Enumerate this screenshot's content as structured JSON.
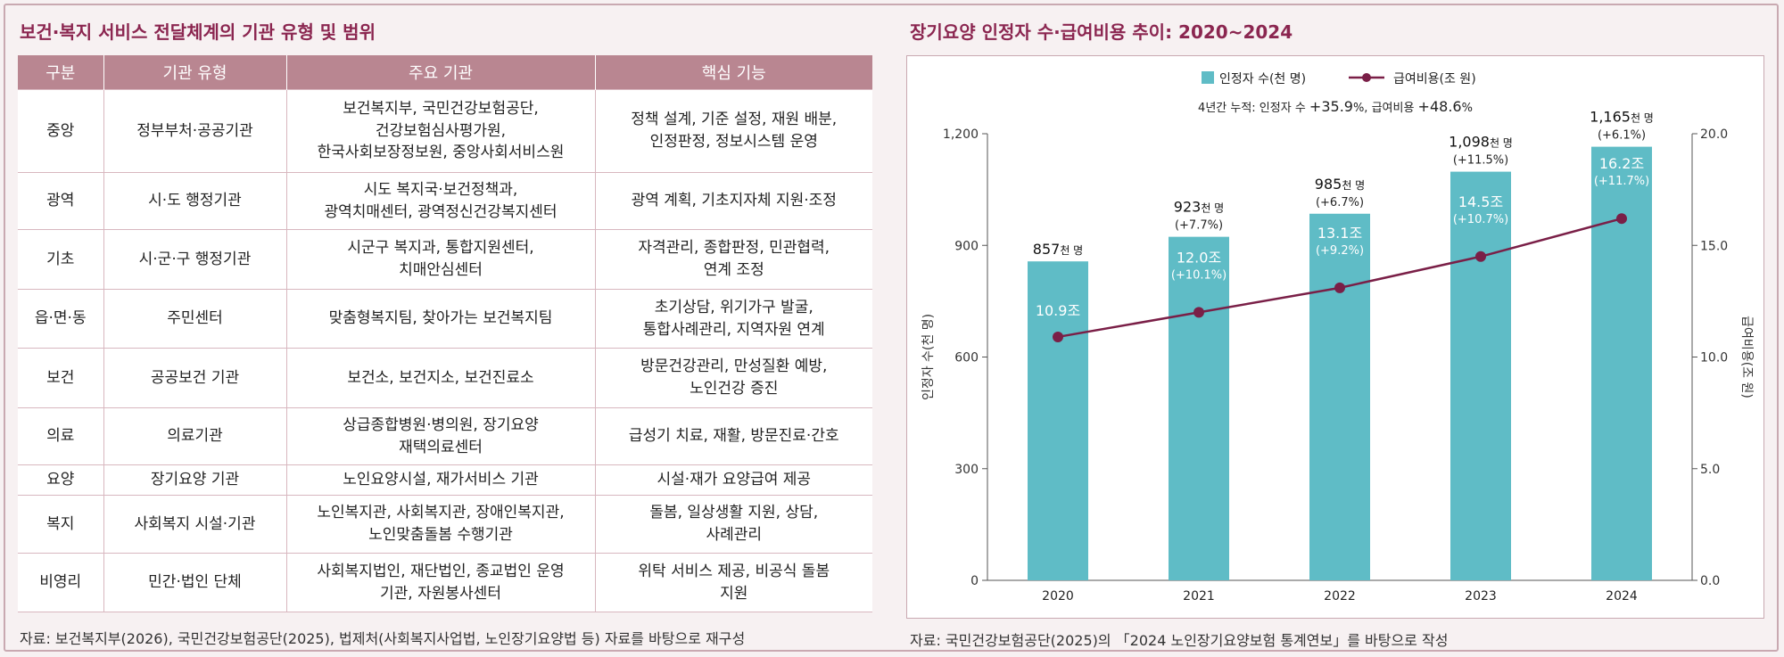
{
  "left": {
    "title": "보건·복지 서비스 전달체계의 기관 유형 및 범위",
    "headers": [
      "구분",
      "기관 유형",
      "주요 기관",
      "핵심 기능"
    ],
    "rows": [
      {
        "level": "중앙",
        "type": "정부부처·공공기관",
        "main": [
          "보건복지부, 국민건강보험공단,",
          "건강보험심사평가원,",
          "한국사회보장정보원, 중앙사회서비스원"
        ],
        "func": [
          "정책 설계, 기준 설정, 재원 배분,",
          "인정판정, 정보시스템 운영"
        ]
      },
      {
        "level": "광역",
        "type": "시·도 행정기관",
        "main": [
          "시도 복지국·보건정책과,",
          "광역치매센터, 광역정신건강복지센터"
        ],
        "func": [
          "광역 계획, 기초지자체 지원·조정"
        ]
      },
      {
        "level": "기초",
        "type": "시·군·구 행정기관",
        "main": [
          "시군구 복지과, 통합지원센터,",
          "치매안심센터"
        ],
        "func": [
          "자격관리, 종합판정, 민관협력,",
          "연계 조정"
        ]
      },
      {
        "level": "읍·면·동",
        "type": "주민센터",
        "main": [
          "맞춤형복지팀, 찾아가는 보건복지팀"
        ],
        "func": [
          "초기상담, 위기가구 발굴,",
          "통합사례관리, 지역자원 연계"
        ]
      },
      {
        "level": "보건",
        "type": "공공보건 기관",
        "main": [
          "보건소, 보건지소, 보건진료소"
        ],
        "func": [
          "방문건강관리, 만성질환 예방,",
          "노인건강 증진"
        ]
      },
      {
        "level": "의료",
        "type": "의료기관",
        "main": [
          "상급종합병원·병의원, 장기요양",
          "재택의료센터"
        ],
        "func": [
          "급성기 치료, 재활, 방문진료·간호"
        ]
      },
      {
        "level": "요양",
        "type": "장기요양 기관",
        "main": [
          "노인요양시설, 재가서비스 기관"
        ],
        "func": [
          "시설·재가 요양급여 제공"
        ]
      },
      {
        "level": "복지",
        "type": "사회복지 시설·기관",
        "main": [
          "노인복지관, 사회복지관, 장애인복지관,",
          "노인맞춤돌봄 수행기관"
        ],
        "func": [
          "돌봄, 일상생활 지원, 상담,",
          "사례관리"
        ]
      },
      {
        "level": "비영리",
        "type": "민간·법인 단체",
        "main": [
          "사회복지법인, 재단법인, 종교법인 운영",
          "기관, 자원봉사센터"
        ],
        "func": [
          "위탁 서비스 제공, 비공식 돌봄",
          "지원"
        ]
      }
    ],
    "source": "자료: 보건복지부(2026), 국민건강보험공단(2025), 법제처(사회복지사업법, 노인장기요양법 등) 자료를 바탕으로 재구성"
  },
  "right": {
    "title": "장기요양 인정자 수·급여비용 추이: 2020~2024",
    "source": "자료: 국민건강보험공단(2025)의 「2024 노인장기요양보험 통계연보」를 바탕으로 작성"
  },
  "chart_data": {
    "type": "bar",
    "categories": [
      "2020",
      "2021",
      "2022",
      "2023",
      "2024"
    ],
    "series": [
      {
        "name": "인정자 수(천 명)",
        "kind": "bar",
        "axis": "left",
        "color": "#5fbcc6",
        "values": [
          857,
          923,
          985,
          1098,
          1165
        ],
        "labels": [
          "857",
          "923",
          "985",
          "1,098",
          "1,165"
        ],
        "label_unit": "천 명",
        "growth": [
          "",
          "(+7.7%)",
          "(+6.7%)",
          "(+11.5%)",
          "(+6.1%)"
        ]
      },
      {
        "name": "급여비용(조 원)",
        "kind": "line",
        "axis": "right",
        "color": "#7a1f47",
        "values": [
          10.9,
          12.0,
          13.1,
          14.5,
          16.2
        ],
        "labels": [
          "10.9조",
          "12.0조",
          "13.1조",
          "14.5조",
          "16.2조"
        ],
        "growth": [
          "",
          "(+10.1%)",
          "(+9.2%)",
          "(+10.7%)",
          "(+11.7%)"
        ]
      }
    ],
    "ylabel": "인정자 수(천 명)",
    "y2label": "급여비용(조 원)",
    "ylim": [
      0,
      1200
    ],
    "y2lim": [
      0,
      20
    ],
    "yticks": [
      "0",
      "300",
      "600",
      "900",
      "1,200"
    ],
    "y2ticks": [
      "0.0",
      "5.0",
      "10.0",
      "15.0",
      "20.0"
    ],
    "annotation": {
      "prefix": "4년간 누적: 인정자 수 ",
      "v1": "+35.9",
      "mid": "%, 급여비용 ",
      "v2": "+48.6",
      "suffix": "%"
    },
    "legend_position": "top",
    "grid": false
  }
}
